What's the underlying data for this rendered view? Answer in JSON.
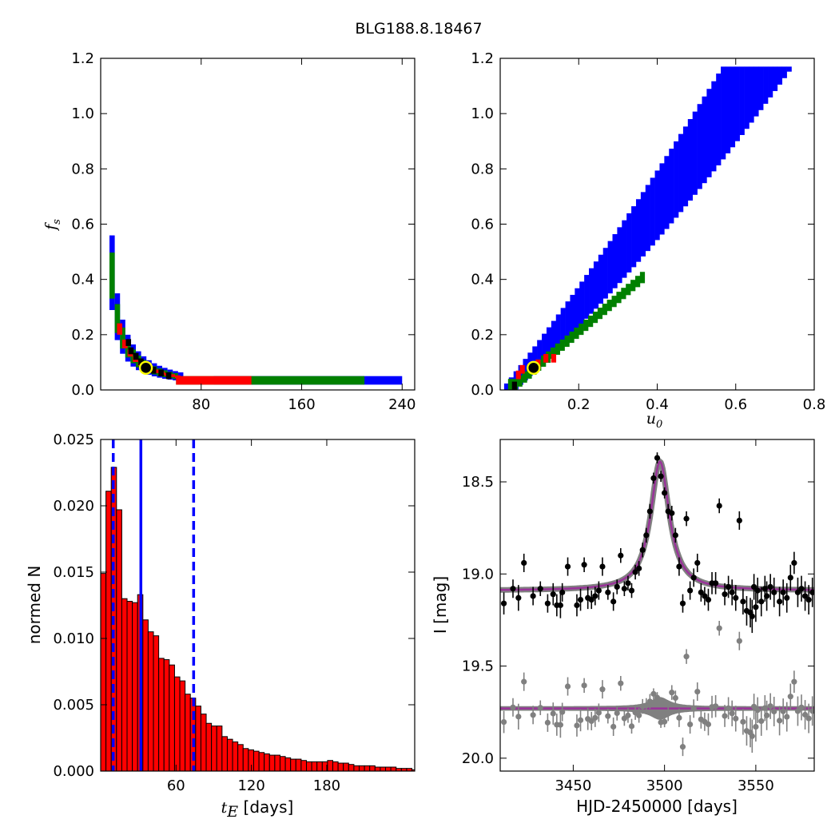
{
  "title": "BLG188.8.18467",
  "colors": {
    "sigma1": "#000000",
    "sigma2": "#ff0000",
    "sigma3": "#008000",
    "sigma4": "#0000ff",
    "marker": "#ffff00",
    "model": "#993399",
    "model_band": "#808080",
    "residuals": "#808080",
    "hist_fill": "#ff0000",
    "quantile_lines": "#0000ff"
  },
  "chart_data": [
    {
      "id": "fs_vs_tE",
      "type": "heatmap",
      "xlabel": "",
      "ylabel": "f",
      "ylabel_sub": "s",
      "xlim": [
        0,
        250
      ],
      "ylim": [
        0,
        1.2
      ],
      "xticks": [
        80,
        160,
        240
      ],
      "xticklabels": [
        "80",
        "160",
        "240"
      ],
      "yticks": [
        0,
        0.2,
        0.4,
        0.6,
        0.8,
        1.0,
        1.2
      ],
      "yticklabels": [
        "0.0",
        "0.2",
        "0.4",
        "0.6",
        "0.8",
        "1.0",
        "1.2"
      ],
      "best_fit": {
        "x": 36,
        "y": 0.08
      }
    },
    {
      "id": "fs_vs_u0",
      "type": "heatmap",
      "xlabel": "u",
      "xlabel_sub": "0",
      "ylabel": "",
      "xlim": [
        0,
        0.8
      ],
      "ylim": [
        0,
        1.2
      ],
      "xticks": [
        0.2,
        0.4,
        0.6,
        0.8
      ],
      "xticklabels": [
        "0.2",
        "0.4",
        "0.6",
        "0.8"
      ],
      "yticks": [
        0,
        0.2,
        0.4,
        0.6,
        0.8,
        1.0,
        1.2
      ],
      "yticklabels": [
        "0.0",
        "0.2",
        "0.4",
        "0.6",
        "0.8",
        "1.0",
        "1.2"
      ],
      "best_fit": {
        "x": 0.085,
        "y": 0.08
      }
    },
    {
      "id": "tE_histogram",
      "type": "bar",
      "xlabel": "t",
      "xlabel_sub": "E",
      "xlabel_suffix": " [days]",
      "ylabel": "normed N",
      "xlim": [
        0,
        250
      ],
      "ylim": [
        0,
        0.025
      ],
      "xticks": [
        60,
        120,
        180
      ],
      "xticklabels": [
        "60",
        "120",
        "180"
      ],
      "yticks": [
        0,
        0.005,
        0.01,
        0.015,
        0.02,
        0.025
      ],
      "yticklabels": [
        "0.000",
        "0.005",
        "0.010",
        "0.015",
        "0.020",
        "0.025"
      ],
      "bin_start": 0,
      "bin_width": 4.2,
      "values": [
        0.0149,
        0.0211,
        0.0229,
        0.0197,
        0.013,
        0.0128,
        0.0127,
        0.0133,
        0.0114,
        0.0105,
        0.0102,
        0.0085,
        0.0084,
        0.008,
        0.0071,
        0.0068,
        0.0058,
        0.0055,
        0.0049,
        0.0043,
        0.0036,
        0.0034,
        0.0034,
        0.0026,
        0.0024,
        0.0022,
        0.002,
        0.0017,
        0.0016,
        0.0015,
        0.0014,
        0.0013,
        0.0012,
        0.0012,
        0.0011,
        0.001,
        0.0009,
        0.0009,
        0.0008,
        0.0007,
        0.0007,
        0.0007,
        0.0007,
        0.0008,
        0.0007,
        0.0006,
        0.0006,
        0.0005,
        0.0004,
        0.0004,
        0.0004,
        0.0004,
        0.0003,
        0.0003,
        0.0003,
        0.0003,
        0.0002,
        0.0002,
        0.0002,
        0.0001
      ],
      "vlines": [
        {
          "x": 10,
          "style": "dashed"
        },
        {
          "x": 32,
          "style": "solid"
        },
        {
          "x": 74,
          "style": "dashed"
        }
      ]
    },
    {
      "id": "light_curve",
      "type": "scatter",
      "xlabel": "HJD-2450000 [days]",
      "ylabel": "I [mag]",
      "xlim": [
        3410,
        3582
      ],
      "ylim": [
        20.07,
        18.27
      ],
      "inverted_y": true,
      "xticks": [
        3450,
        3500,
        3550
      ],
      "xticklabels": [
        "3450",
        "3500",
        "3550"
      ],
      "yticks": [
        18.5,
        19.0,
        19.5,
        20.0
      ],
      "yticklabels": [
        "18.5",
        "19.0",
        "19.5",
        "20.0"
      ],
      "model": {
        "t0": 3497.5,
        "baseline": 19.09,
        "peak": 18.39,
        "tE": 6.2
      },
      "residual_offset": 19.73,
      "points": [
        [
          3412,
          19.16,
          0.06
        ],
        [
          3417,
          19.08,
          0.05
        ],
        [
          3420,
          19.13,
          0.07
        ],
        [
          3423,
          18.94,
          0.05
        ],
        [
          3428,
          19.12,
          0.05
        ],
        [
          3432,
          19.08,
          0.04
        ],
        [
          3436,
          19.16,
          0.05
        ],
        [
          3439,
          19.11,
          0.06
        ],
        [
          3441,
          19.17,
          0.06
        ],
        [
          3443,
          19.17,
          0.07
        ],
        [
          3444,
          19.1,
          0.05
        ],
        [
          3447,
          18.96,
          0.05
        ],
        [
          3452,
          19.17,
          0.06
        ],
        [
          3454,
          19.14,
          0.06
        ],
        [
          3456,
          18.95,
          0.04
        ],
        [
          3458,
          19.13,
          0.06
        ],
        [
          3460,
          19.14,
          0.05
        ],
        [
          3462,
          19.12,
          0.05
        ],
        [
          3464,
          19.09,
          0.05
        ],
        [
          3466,
          18.96,
          0.05
        ],
        [
          3469,
          19.1,
          0.04
        ],
        [
          3472,
          19.15,
          0.05
        ],
        [
          3474,
          19.07,
          0.04
        ],
        [
          3476,
          18.9,
          0.04
        ],
        [
          3478,
          19.08,
          0.04
        ],
        [
          3480,
          19.05,
          0.04
        ],
        [
          3482,
          19.09,
          0.04
        ],
        [
          3484,
          18.99,
          0.04
        ],
        [
          3486,
          18.97,
          0.04
        ],
        [
          3488,
          18.87,
          0.04
        ],
        [
          3490,
          18.79,
          0.04
        ],
        [
          3492,
          18.66,
          0.04
        ],
        [
          3494,
          18.48,
          0.03
        ],
        [
          3496,
          18.37,
          0.03
        ],
        [
          3498,
          18.47,
          0.03
        ],
        [
          3500,
          18.56,
          0.03
        ],
        [
          3502,
          18.66,
          0.04
        ],
        [
          3504,
          18.67,
          0.04
        ],
        [
          3506,
          18.79,
          0.04
        ],
        [
          3508,
          18.96,
          0.05
        ],
        [
          3510,
          19.16,
          0.05
        ],
        [
          3512,
          18.7,
          0.04
        ],
        [
          3514,
          19.09,
          0.05
        ],
        [
          3516,
          19.02,
          0.05
        ],
        [
          3518,
          18.94,
          0.05
        ],
        [
          3520,
          19.1,
          0.05
        ],
        [
          3522,
          19.12,
          0.05
        ],
        [
          3524,
          19.14,
          0.06
        ],
        [
          3526,
          19.05,
          0.06
        ],
        [
          3528,
          19.05,
          0.06
        ],
        [
          3530,
          18.63,
          0.04
        ],
        [
          3533,
          19.11,
          0.06
        ],
        [
          3535,
          19.07,
          0.06
        ],
        [
          3537,
          19.1,
          0.07
        ],
        [
          3539,
          19.13,
          0.07
        ],
        [
          3541,
          18.71,
          0.05
        ],
        [
          3543,
          19.15,
          0.07
        ],
        [
          3545,
          19.2,
          0.08
        ],
        [
          3547,
          19.21,
          0.08
        ],
        [
          3548,
          19.23,
          0.09
        ],
        [
          3549,
          19.07,
          0.07
        ],
        [
          3550,
          19.18,
          0.08
        ],
        [
          3551,
          19.09,
          0.07
        ],
        [
          3553,
          19.15,
          0.08
        ],
        [
          3555,
          19.08,
          0.07
        ],
        [
          3556,
          19.12,
          0.08
        ],
        [
          3558,
          19.07,
          0.07
        ],
        [
          3560,
          19.1,
          0.08
        ],
        [
          3563,
          19.15,
          0.08
        ],
        [
          3565,
          19.1,
          0.07
        ],
        [
          3567,
          19.13,
          0.08
        ],
        [
          3569,
          19.02,
          0.07
        ],
        [
          3571,
          18.94,
          0.06
        ],
        [
          3573,
          19.1,
          0.08
        ],
        [
          3575,
          19.08,
          0.07
        ],
        [
          3577,
          19.12,
          0.08
        ],
        [
          3579,
          19.14,
          0.08
        ],
        [
          3581,
          19.1,
          0.08
        ]
      ]
    }
  ]
}
